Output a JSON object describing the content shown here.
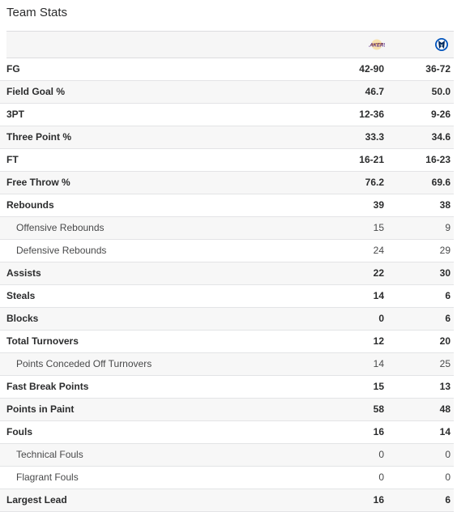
{
  "title": "Team Stats",
  "teams": [
    {
      "icon": "lakers-logo-icon",
      "color": "#552583",
      "accent": "#fdb927"
    },
    {
      "icon": "mavericks-logo-icon",
      "color": "#0053bc",
      "accent": "#00285e"
    }
  ],
  "rows": [
    {
      "label": "FG",
      "a": "42-90",
      "b": "36-72"
    },
    {
      "label": "Field Goal %",
      "a": "46.7",
      "b": "50.0"
    },
    {
      "label": "3PT",
      "a": "12-36",
      "b": "9-26"
    },
    {
      "label": "Three Point %",
      "a": "33.3",
      "b": "34.6"
    },
    {
      "label": "FT",
      "a": "16-21",
      "b": "16-23"
    },
    {
      "label": "Free Throw %",
      "a": "76.2",
      "b": "69.6"
    },
    {
      "label": "Rebounds",
      "a": "39",
      "b": "38"
    },
    {
      "label": "Offensive Rebounds",
      "a": "15",
      "b": "9"
    },
    {
      "label": "Defensive Rebounds",
      "a": "24",
      "b": "29"
    },
    {
      "label": "Assists",
      "a": "22",
      "b": "30"
    },
    {
      "label": "Steals",
      "a": "14",
      "b": "6"
    },
    {
      "label": "Blocks",
      "a": "0",
      "b": "6"
    },
    {
      "label": "Total Turnovers",
      "a": "12",
      "b": "20"
    },
    {
      "label": "Points Conceded Off Turnovers",
      "a": "14",
      "b": "25"
    },
    {
      "label": "Fast Break Points",
      "a": "15",
      "b": "13"
    },
    {
      "label": "Points in Paint",
      "a": "58",
      "b": "48"
    },
    {
      "label": "Fouls",
      "a": "16",
      "b": "14"
    },
    {
      "label": "Technical Fouls",
      "a": "0",
      "b": "0"
    },
    {
      "label": "Flagrant Fouls",
      "a": "0",
      "b": "0"
    },
    {
      "label": "Largest Lead",
      "a": "16",
      "b": "6"
    }
  ]
}
